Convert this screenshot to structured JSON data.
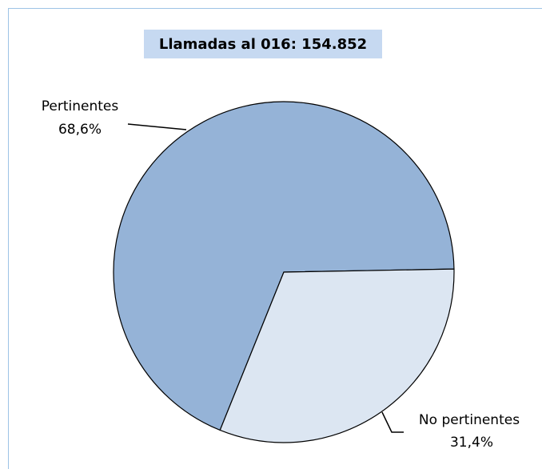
{
  "chart_data": {
    "type": "pie",
    "title": "Llamadas al 016: 154.852",
    "categories": [
      "Pertinentes",
      "No pertinentes"
    ],
    "values": [
      68.6,
      31.4
    ],
    "value_labels": [
      "68,6%",
      "31,4%"
    ],
    "colors": [
      "#95b3d7",
      "#dce6f2"
    ]
  }
}
